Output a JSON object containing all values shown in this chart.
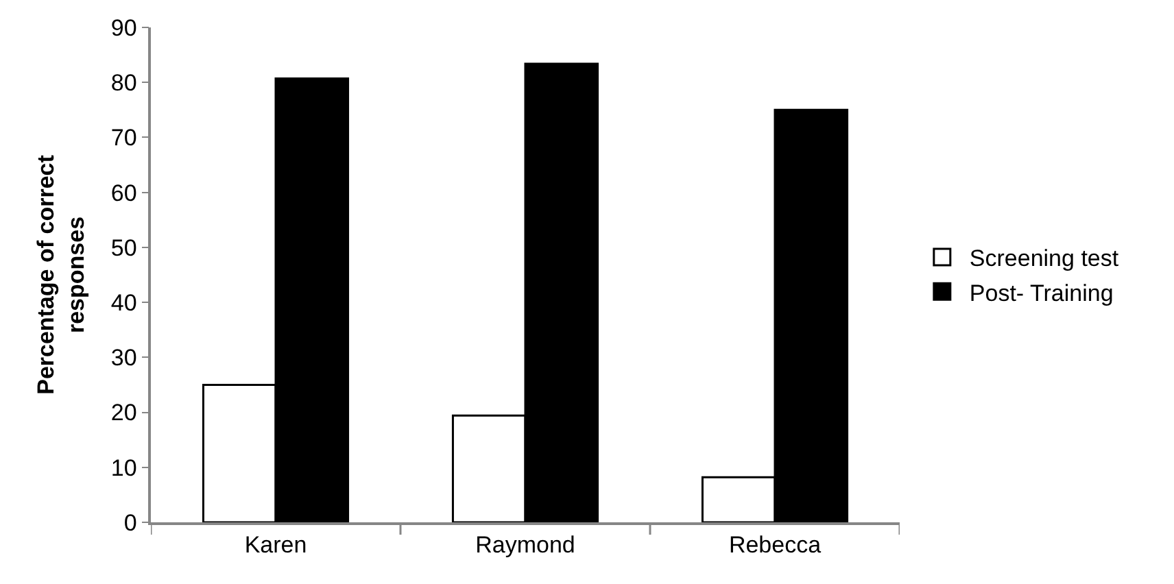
{
  "chart_data": {
    "type": "bar",
    "ylabel": "Percentage of correct responses",
    "categories": [
      "Karen",
      "Raymond",
      "Rebecca"
    ],
    "series": [
      {
        "name": "Screening test",
        "color": "#ffffff",
        "values": [
          25,
          19.4,
          8.2
        ]
      },
      {
        "name": "Post- Training",
        "color": "#000000",
        "values": [
          80.7,
          83.4,
          75
        ]
      }
    ],
    "ylim": [
      0,
      90
    ],
    "yticks": [
      0,
      10,
      20,
      30,
      40,
      50,
      60,
      70,
      80,
      90
    ],
    "legend": "right"
  }
}
